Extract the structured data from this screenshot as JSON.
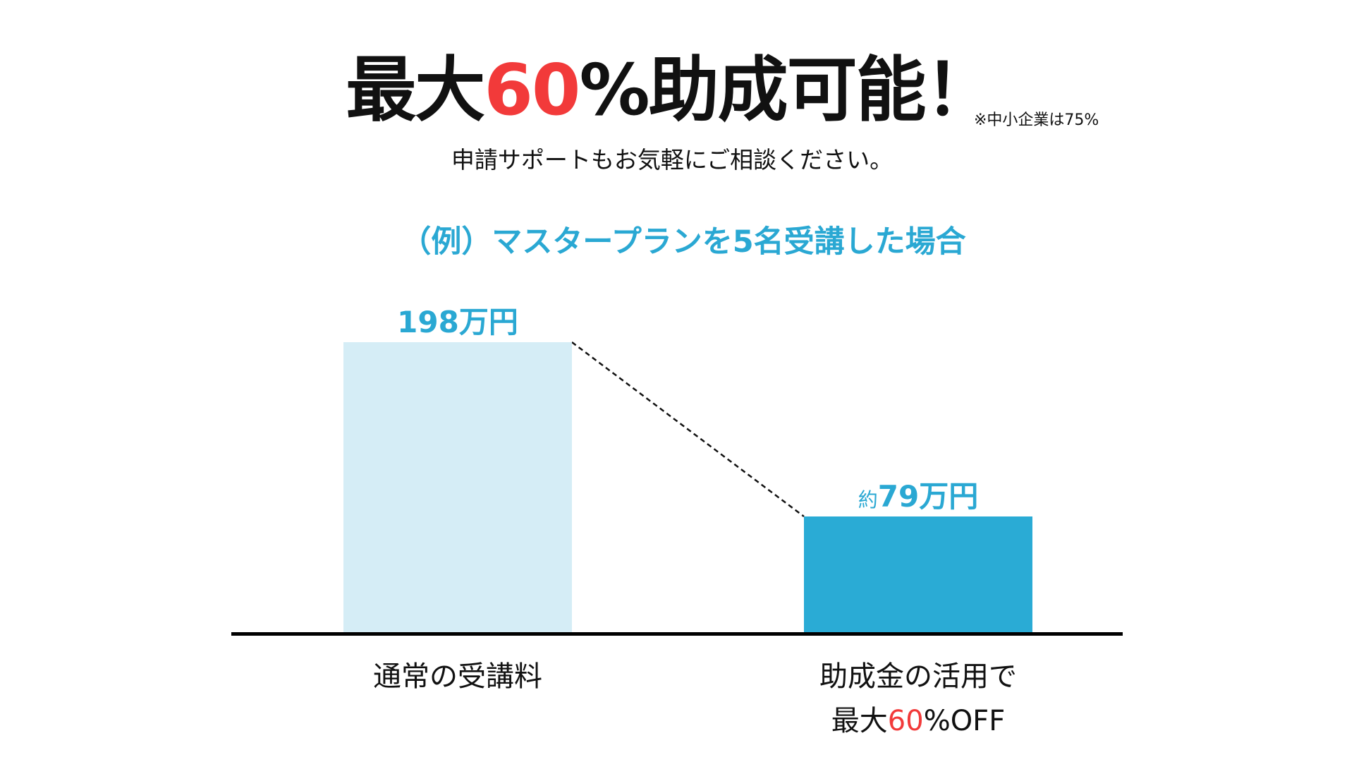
{
  "header": {
    "title_parts": [
      "最大",
      "60",
      "%助成可能！"
    ],
    "note": "※中小企業は75%",
    "subtitle": "申請サポートもお気軽にご相談ください。",
    "example": "（例）マスタープランを5名受講した場合"
  },
  "colors": {
    "accent": "#2aa8d3",
    "light_bar": "#d5edf6",
    "dark_bar": "#2aabd5",
    "highlight": "#f23a3a"
  },
  "chart_data": {
    "type": "bar",
    "title": "（例）マスタープランを5名受講した場合",
    "categories": [
      "通常の受講料",
      "助成金の活用で最大60%OFF"
    ],
    "values": [
      198,
      79
    ],
    "unit": "万円",
    "ylim": [
      0,
      198
    ],
    "grid": false,
    "value_labels": [
      {
        "prefix": "",
        "text": "198万円"
      },
      {
        "prefix": "約",
        "text": "79万円"
      }
    ],
    "category_labels": [
      {
        "line1": "通常の受講料"
      },
      {
        "line1": "助成金の活用で",
        "line2_parts": [
          "最大",
          "60",
          "%OFF"
        ]
      }
    ]
  }
}
